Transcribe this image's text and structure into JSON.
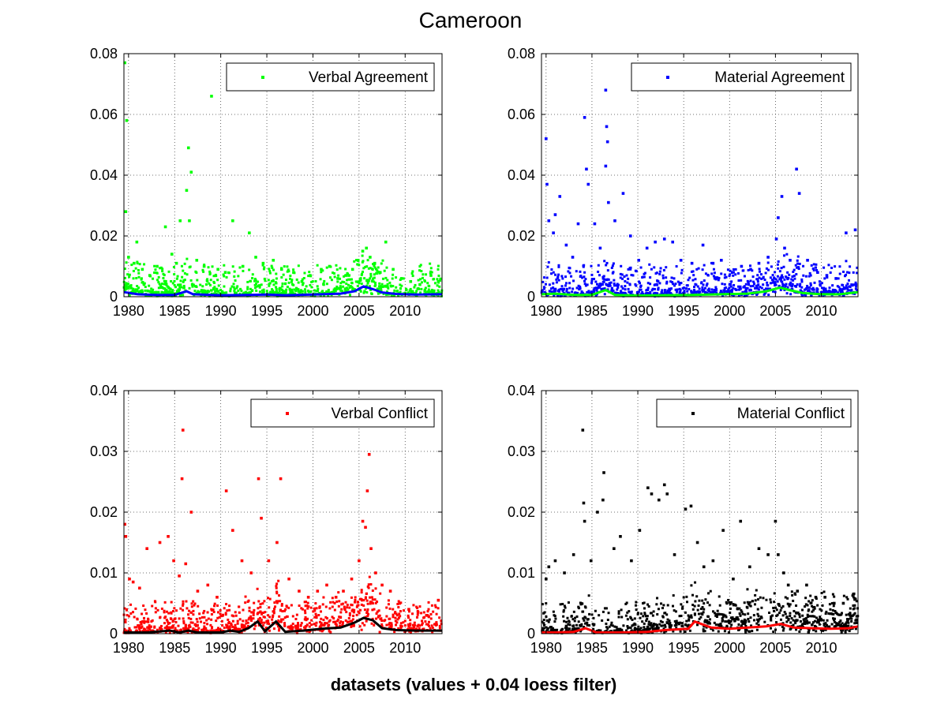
{
  "figure": {
    "title": "Cameroon",
    "xlabel": "datasets (values + 0.04 loess filter)"
  },
  "chart_data": [
    {
      "type": "scatter",
      "legend": [
        "Verbal Agreement"
      ],
      "legend_position": "top-right",
      "marker_color": "#00ff00",
      "trend_color": "#0000ff",
      "xlim": [
        1979.5,
        2014
      ],
      "ylim": [
        0,
        0.08
      ],
      "xticks": [
        1980,
        1985,
        1990,
        1995,
        2000,
        2005,
        2010
      ],
      "yticks": [
        0,
        0.02,
        0.04,
        0.06,
        0.08
      ],
      "ytick_labels": [
        "0",
        "0.02",
        "0.04",
        "0.06",
        "0.08"
      ],
      "grid": true,
      "points": [
        [
          1979.6,
          0.077
        ],
        [
          1979.8,
          0.058
        ],
        [
          1979.7,
          0.028
        ],
        [
          1980.0,
          0.013
        ],
        [
          1980.6,
          0.011
        ],
        [
          1980.9,
          0.018
        ],
        [
          1981.5,
          0.009
        ],
        [
          1982.3,
          0.007
        ],
        [
          1983.1,
          0.01
        ],
        [
          1984.0,
          0.023
        ],
        [
          1984.7,
          0.014
        ],
        [
          1985.2,
          0.011
        ],
        [
          1985.6,
          0.025
        ],
        [
          1986.3,
          0.035
        ],
        [
          1986.5,
          0.049
        ],
        [
          1986.8,
          0.041
        ],
        [
          1986.6,
          0.025
        ],
        [
          1987.4,
          0.012
        ],
        [
          1988.2,
          0.01
        ],
        [
          1989.0,
          0.066
        ],
        [
          1989.7,
          0.009
        ],
        [
          1990.5,
          0.008
        ],
        [
          1991.3,
          0.025
        ],
        [
          1992.4,
          0.01
        ],
        [
          1993.1,
          0.021
        ],
        [
          1993.8,
          0.013
        ],
        [
          1994.6,
          0.011
        ],
        [
          1995.7,
          0.012
        ],
        [
          1996.6,
          0.009
        ],
        [
          1997.9,
          0.008
        ],
        [
          1998.8,
          0.005
        ],
        [
          1999.7,
          0.007
        ],
        [
          2000.9,
          0.009
        ],
        [
          2001.8,
          0.01
        ],
        [
          2002.7,
          0.006
        ],
        [
          2003.6,
          0.007
        ],
        [
          2004.3,
          0.009
        ],
        [
          2004.9,
          0.012
        ],
        [
          2005.4,
          0.015
        ],
        [
          2005.8,
          0.016
        ],
        [
          2006.2,
          0.013
        ],
        [
          2006.7,
          0.011
        ],
        [
          2007.3,
          0.008
        ],
        [
          2007.9,
          0.018
        ],
        [
          2008.7,
          0.009
        ],
        [
          2009.6,
          0.006
        ],
        [
          2010.6,
          0.005
        ],
        [
          2011.6,
          0.004
        ],
        [
          2012.8,
          0.007
        ],
        [
          2013.6,
          0.005
        ]
      ],
      "trend": [
        [
          1979.5,
          0.0015
        ],
        [
          1981,
          0.0008
        ],
        [
          1983,
          0.0006
        ],
        [
          1985,
          0.0006
        ],
        [
          1986.3,
          0.0018
        ],
        [
          1987,
          0.0008
        ],
        [
          1990,
          0.0005
        ],
        [
          1993,
          0.0006
        ],
        [
          1995,
          0.0007
        ],
        [
          1997,
          0.0005
        ],
        [
          2000,
          0.0007
        ],
        [
          2003,
          0.001
        ],
        [
          2004.5,
          0.0018
        ],
        [
          2005.5,
          0.0034
        ],
        [
          2006.5,
          0.0025
        ],
        [
          2007.5,
          0.0014
        ],
        [
          2009,
          0.0009
        ],
        [
          2011,
          0.0007
        ],
        [
          2014,
          0.0008
        ]
      ]
    },
    {
      "type": "scatter",
      "legend": [
        "Material Agreement"
      ],
      "legend_position": "top-right",
      "marker_color": "#0000ff",
      "trend_color": "#00ff00",
      "xlim": [
        1979.5,
        2014
      ],
      "ylim": [
        0,
        0.08
      ],
      "xticks": [
        1980,
        1985,
        1990,
        1995,
        2000,
        2005,
        2010
      ],
      "yticks": [
        0,
        0.02,
        0.04,
        0.06,
        0.08
      ],
      "ytick_labels": [
        "0",
        "0.02",
        "0.04",
        "0.06",
        "0.08"
      ],
      "grid": true,
      "points": [
        [
          1980.0,
          0.052
        ],
        [
          1980.1,
          0.037
        ],
        [
          1980.3,
          0.025
        ],
        [
          1980.8,
          0.021
        ],
        [
          1981.0,
          0.027
        ],
        [
          1981.5,
          0.033
        ],
        [
          1982.2,
          0.017
        ],
        [
          1982.9,
          0.013
        ],
        [
          1983.5,
          0.024
        ],
        [
          1984.2,
          0.059
        ],
        [
          1984.4,
          0.042
        ],
        [
          1984.6,
          0.037
        ],
        [
          1985.3,
          0.024
        ],
        [
          1985.9,
          0.016
        ],
        [
          1986.5,
          0.068
        ],
        [
          1986.6,
          0.056
        ],
        [
          1986.7,
          0.051
        ],
        [
          1986.5,
          0.043
        ],
        [
          1986.8,
          0.031
        ],
        [
          1987.5,
          0.025
        ],
        [
          1988.4,
          0.034
        ],
        [
          1989.2,
          0.02
        ],
        [
          1990.1,
          0.012
        ],
        [
          1991.0,
          0.016
        ],
        [
          1991.9,
          0.018
        ],
        [
          1992.9,
          0.019
        ],
        [
          1993.8,
          0.018
        ],
        [
          1994.7,
          0.012
        ],
        [
          1995.9,
          0.011
        ],
        [
          1997.1,
          0.017
        ],
        [
          1998.2,
          0.011
        ],
        [
          1999.1,
          0.012
        ],
        [
          2000.3,
          0.008
        ],
        [
          2001.3,
          0.01
        ],
        [
          2002.3,
          0.009
        ],
        [
          2003.2,
          0.011
        ],
        [
          2004.2,
          0.013
        ],
        [
          2005.1,
          0.019
        ],
        [
          2005.3,
          0.026
        ],
        [
          2005.7,
          0.033
        ],
        [
          2006.0,
          0.016
        ],
        [
          2006.6,
          0.012
        ],
        [
          2007.3,
          0.042
        ],
        [
          2007.6,
          0.034
        ],
        [
          2008.5,
          0.012
        ],
        [
          2009.6,
          0.008
        ],
        [
          2010.6,
          0.007
        ],
        [
          2011.6,
          0.006
        ],
        [
          2012.7,
          0.021
        ],
        [
          2013.7,
          0.022
        ]
      ],
      "trend": [
        [
          1979.5,
          0.0008
        ],
        [
          1981,
          0.001
        ],
        [
          1983,
          0.0006
        ],
        [
          1985,
          0.0006
        ],
        [
          1986.5,
          0.0022
        ],
        [
          1987.5,
          0.0006
        ],
        [
          1990,
          0.0004
        ],
        [
          1993,
          0.0005
        ],
        [
          1996,
          0.0006
        ],
        [
          1999,
          0.0008
        ],
        [
          2002,
          0.001
        ],
        [
          2004,
          0.0018
        ],
        [
          2005.5,
          0.003
        ],
        [
          2006.5,
          0.0022
        ],
        [
          2008,
          0.0012
        ],
        [
          2010,
          0.0008
        ],
        [
          2012,
          0.0008
        ],
        [
          2014,
          0.0015
        ]
      ]
    },
    {
      "type": "scatter",
      "legend": [
        "Verbal Conflict"
      ],
      "legend_position": "top-right",
      "marker_color": "#ff0000",
      "trend_color": "#000000",
      "xlim": [
        1979.5,
        2014
      ],
      "ylim": [
        0,
        0.04
      ],
      "xticks": [
        1980,
        1985,
        1990,
        1995,
        2000,
        2005,
        2010
      ],
      "yticks": [
        0,
        0.01,
        0.02,
        0.03,
        0.04
      ],
      "ytick_labels": [
        "0",
        "0.01",
        "0.02",
        "0.03",
        "0.04"
      ],
      "grid": true,
      "points": [
        [
          1979.6,
          0.018
        ],
        [
          1979.7,
          0.016
        ],
        [
          1980.1,
          0.009
        ],
        [
          1980.5,
          0.0085
        ],
        [
          1981.2,
          0.0075
        ],
        [
          1982.0,
          0.014
        ],
        [
          1983.4,
          0.015
        ],
        [
          1984.3,
          0.016
        ],
        [
          1984.9,
          0.012
        ],
        [
          1985.5,
          0.0095
        ],
        [
          1985.9,
          0.0335
        ],
        [
          1985.8,
          0.0255
        ],
        [
          1986.2,
          0.0115
        ],
        [
          1986.8,
          0.02
        ],
        [
          1987.5,
          0.007
        ],
        [
          1988.6,
          0.008
        ],
        [
          1989.6,
          0.006
        ],
        [
          1990.6,
          0.0235
        ],
        [
          1991.3,
          0.017
        ],
        [
          1992.3,
          0.012
        ],
        [
          1993.3,
          0.01
        ],
        [
          1994.1,
          0.0255
        ],
        [
          1994.4,
          0.019
        ],
        [
          1995.2,
          0.012
        ],
        [
          1996.1,
          0.015
        ],
        [
          1996.5,
          0.0255
        ],
        [
          1997.4,
          0.009
        ],
        [
          1998.5,
          0.007
        ],
        [
          1999.5,
          0.006
        ],
        [
          2000.5,
          0.007
        ],
        [
          2001.5,
          0.008
        ],
        [
          2002.5,
          0.006
        ],
        [
          2003.3,
          0.007
        ],
        [
          2004.2,
          0.009
        ],
        [
          2005.0,
          0.012
        ],
        [
          2005.4,
          0.0185
        ],
        [
          2005.7,
          0.0175
        ],
        [
          2005.9,
          0.0235
        ],
        [
          2006.1,
          0.0295
        ],
        [
          2006.3,
          0.014
        ],
        [
          2006.8,
          0.01
        ],
        [
          2007.5,
          0.008
        ],
        [
          2008.4,
          0.007
        ],
        [
          2009.4,
          0.005
        ],
        [
          2010.4,
          0.004
        ],
        [
          2011.4,
          0.0035
        ],
        [
          2012.4,
          0.003
        ],
        [
          2013.6,
          0.0055
        ]
      ],
      "trend": [
        [
          1979.5,
          0.0002
        ],
        [
          1982,
          0.0002
        ],
        [
          1984.5,
          0.0005
        ],
        [
          1985.5,
          0.0002
        ],
        [
          1986.5,
          0.0005
        ],
        [
          1987.5,
          0.0002
        ],
        [
          1990,
          0.0002
        ],
        [
          1991,
          0.0005
        ],
        [
          1992,
          0.0003
        ],
        [
          1993,
          0.0009
        ],
        [
          1994,
          0.002
        ],
        [
          1994.8,
          0.0004
        ],
        [
          1996,
          0.002
        ],
        [
          1997,
          0.0003
        ],
        [
          1999,
          0.0005
        ],
        [
          2001,
          0.0008
        ],
        [
          2003,
          0.001
        ],
        [
          2004.5,
          0.0018
        ],
        [
          2005.5,
          0.0026
        ],
        [
          2006.5,
          0.0022
        ],
        [
          2007.5,
          0.0009
        ],
        [
          2009,
          0.0006
        ],
        [
          2011,
          0.0005
        ],
        [
          2014,
          0.0005
        ]
      ]
    },
    {
      "type": "scatter",
      "legend": [
        "Material Conflict"
      ],
      "legend_position": "top-right",
      "marker_color": "#000000",
      "trend_color": "#ff0000",
      "xlim": [
        1979.5,
        2014
      ],
      "ylim": [
        0,
        0.04
      ],
      "xticks": [
        1980,
        1985,
        1990,
        1995,
        2000,
        2005,
        2010
      ],
      "yticks": [
        0,
        0.01,
        0.02,
        0.03,
        0.04
      ],
      "ytick_labels": [
        "0",
        "0.01",
        "0.02",
        "0.03",
        "0.04"
      ],
      "grid": true,
      "points": [
        [
          1980.0,
          0.009
        ],
        [
          1980.3,
          0.011
        ],
        [
          1981.0,
          0.012
        ],
        [
          1982.0,
          0.01
        ],
        [
          1983.0,
          0.013
        ],
        [
          1984.0,
          0.0335
        ],
        [
          1984.1,
          0.0215
        ],
        [
          1984.2,
          0.0185
        ],
        [
          1984.9,
          0.012
        ],
        [
          1985.6,
          0.02
        ],
        [
          1986.3,
          0.0265
        ],
        [
          1986.2,
          0.022
        ],
        [
          1987.4,
          0.014
        ],
        [
          1988.1,
          0.016
        ],
        [
          1989.3,
          0.012
        ],
        [
          1990.2,
          0.017
        ],
        [
          1991.1,
          0.024
        ],
        [
          1991.5,
          0.023
        ],
        [
          1992.3,
          0.022
        ],
        [
          1992.9,
          0.0245
        ],
        [
          1993.2,
          0.023
        ],
        [
          1994.0,
          0.013
        ],
        [
          1995.2,
          0.0205
        ],
        [
          1995.8,
          0.021
        ],
        [
          1996.5,
          0.015
        ],
        [
          1997.2,
          0.011
        ],
        [
          1998.2,
          0.012
        ],
        [
          1999.3,
          0.017
        ],
        [
          2000.4,
          0.009
        ],
        [
          2001.2,
          0.0185
        ],
        [
          2002.2,
          0.011
        ],
        [
          2003.2,
          0.014
        ],
        [
          2004.2,
          0.013
        ],
        [
          2005.0,
          0.0185
        ],
        [
          2005.3,
          0.013
        ],
        [
          2005.9,
          0.01
        ],
        [
          2006.4,
          0.008
        ],
        [
          2007.4,
          0.007
        ],
        [
          2008.4,
          0.008
        ],
        [
          2009.4,
          0.006
        ],
        [
          2010.4,
          0.006
        ],
        [
          2011.4,
          0.005
        ],
        [
          2012.4,
          0.005
        ],
        [
          2013.5,
          0.0065
        ]
      ],
      "trend": [
        [
          1979.5,
          0.0002
        ],
        [
          1981,
          0.0002
        ],
        [
          1983,
          0.0003
        ],
        [
          1984.3,
          0.0009
        ],
        [
          1985.5,
          0.0002
        ],
        [
          1988,
          0.0002
        ],
        [
          1991,
          0.0003
        ],
        [
          1993,
          0.0006
        ],
        [
          1995.5,
          0.0008
        ],
        [
          1996.2,
          0.002
        ],
        [
          1998,
          0.001
        ],
        [
          2000,
          0.0008
        ],
        [
          2002,
          0.001
        ],
        [
          2004,
          0.0012
        ],
        [
          2005.6,
          0.0016
        ],
        [
          2007,
          0.001
        ],
        [
          2009,
          0.0009
        ],
        [
          2011,
          0.0008
        ],
        [
          2013,
          0.0009
        ],
        [
          2014,
          0.0012
        ]
      ]
    }
  ]
}
